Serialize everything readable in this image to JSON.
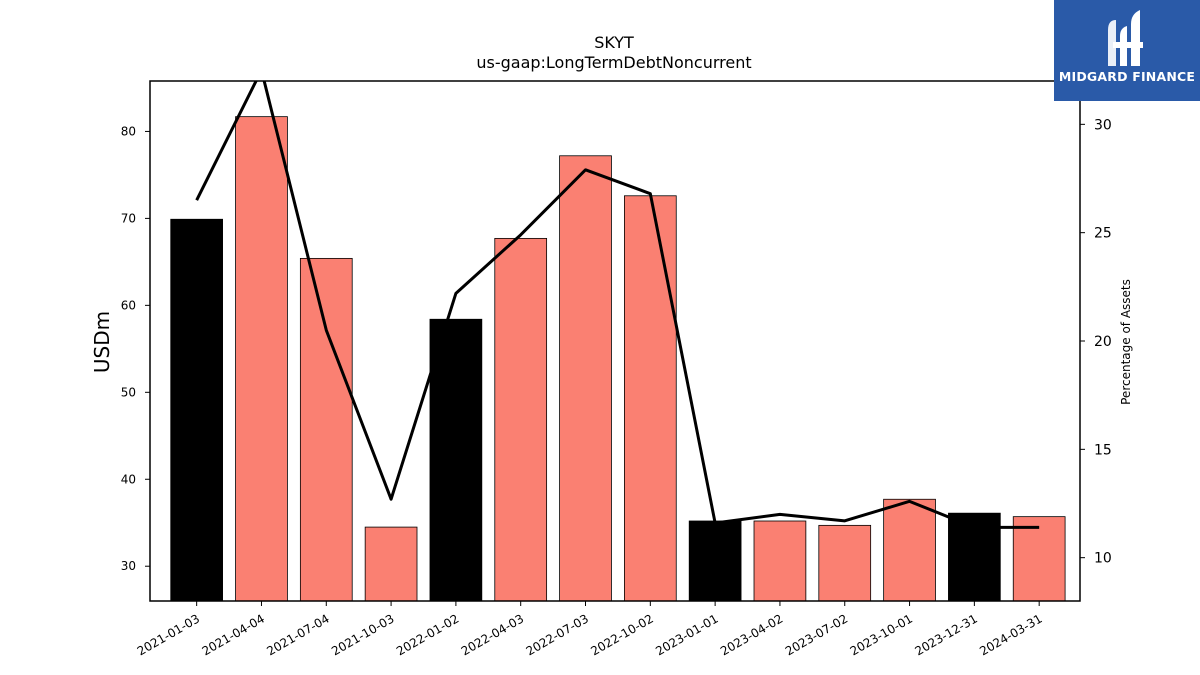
{
  "chart_data": {
    "type": "bar",
    "title": "SKYT",
    "subtitle": "us-gaap:LongTermDebtNoncurrent",
    "ylabel": "USDm",
    "y2label": "Percentage of Assets",
    "ylim": [
      26,
      85.8
    ],
    "y2lim": [
      8.0,
      32.0
    ],
    "yticks": [
      30,
      40,
      50,
      60,
      70,
      80
    ],
    "y2ticks": [
      10,
      15,
      20,
      25,
      30
    ],
    "categories": [
      "2021-01-03",
      "2021-04-04",
      "2021-07-04",
      "2021-10-03",
      "2022-01-02",
      "2022-04-03",
      "2022-07-03",
      "2022-10-02",
      "2023-01-01",
      "2023-04-02",
      "2023-07-02",
      "2023-10-01",
      "2023-12-31",
      "2024-03-31"
    ],
    "series": [
      {
        "values": [
          69.9,
          81.7,
          65.4,
          34.5,
          58.4,
          67.7,
          77.2,
          72.6,
          35.2,
          35.2,
          34.7,
          37.7,
          36.1,
          35.7
        ],
        "colors": [
          "#000000",
          "#fa8072",
          "#fa8072",
          "#fa8072",
          "#000000",
          "#fa8072",
          "#fa8072",
          "#fa8072",
          "#000000",
          "#fa8072",
          "#fa8072",
          "#fa8072",
          "#000000",
          "#fa8072"
        ]
      },
      {
        "axis": "right",
        "type": "line",
        "color": "#000000",
        "values": [
          26.5,
          32.5,
          20.5,
          12.7,
          22.2,
          24.9,
          27.9,
          26.8,
          11.6,
          12.0,
          11.7,
          12.6,
          11.4,
          11.4
        ]
      }
    ],
    "grid": false
  },
  "logo": {
    "text": "MIDGARD FINANCE",
    "background": "#2a5aa8"
  }
}
